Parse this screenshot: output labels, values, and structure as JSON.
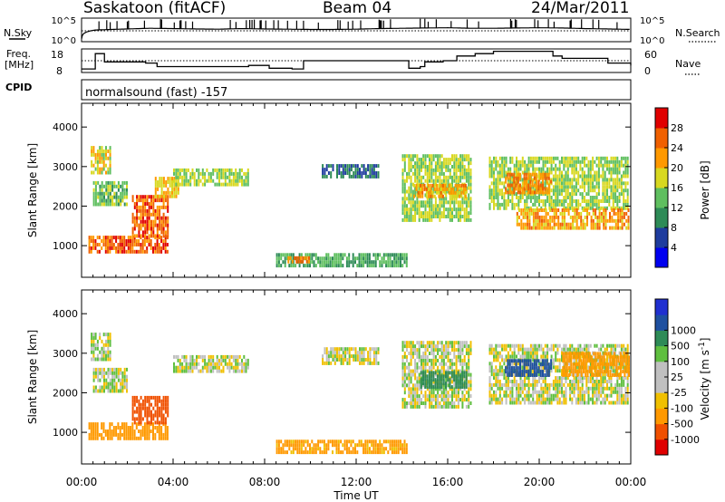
{
  "header": {
    "site": "Saskatoon (fitACF)",
    "beam": "Beam 04",
    "date": "24/Mar/2011"
  },
  "noise_panel": {
    "left_label": "N.Sky",
    "right_label": "N.Search",
    "left_ticks": [
      "10^5",
      "10^0"
    ],
    "right_ticks": [
      "10^5",
      "10^0"
    ]
  },
  "freq_panel": {
    "left_label_1": "Freq.",
    "left_label_2": "[MHz]",
    "right_label": "Nave",
    "left_ticks": [
      "18",
      "8"
    ],
    "right_ticks": [
      "60",
      "0"
    ]
  },
  "cpid": {
    "label": "CPID",
    "value": "normalsound (fast) -157"
  },
  "x_axis": {
    "title": "Time UT",
    "ticks": [
      "00:00",
      "04:00",
      "08:00",
      "12:00",
      "16:00",
      "20:00",
      "00:00"
    ]
  },
  "colors": {
    "power": [
      "#0000f0",
      "#1e3c9e",
      "#2e8b57",
      "#5fbf5f",
      "#d8d820",
      "#ff9900",
      "#f06000",
      "#e00000"
    ],
    "velocity": [
      "#e00000",
      "#f05000",
      "#ff9900",
      "#f0c000",
      "#c0c0c0",
      "#c0c0c0",
      "#5fbf3f",
      "#2e8b57",
      "#1e50a0",
      "#2030d0"
    ]
  },
  "chart_data": [
    {
      "type": "line",
      "title": "Saskatoon (fitACF)",
      "series": [
        {
          "name": "N.Sky",
          "x": [
            0,
            0.6,
            1,
            2,
            3,
            4,
            5,
            6,
            7,
            8,
            9,
            10,
            11,
            12,
            13,
            14,
            15,
            16,
            17,
            18,
            19,
            20,
            21,
            22,
            23,
            24
          ],
          "values": [
            4,
            300,
            350,
            500,
            700,
            600,
            500,
            450,
            600,
            500,
            450,
            400,
            400,
            450,
            600,
            700,
            800,
            900,
            700,
            700,
            800,
            900,
            800,
            600,
            500,
            400
          ]
        }
      ],
      "ylim": [
        1,
        100000
      ],
      "yscale": "log"
    },
    {
      "type": "line",
      "series": [
        {
          "name": "Freq",
          "x": [
            0,
            0.6,
            1.0,
            2.8,
            3.3,
            7.3,
            8.2,
            9.2,
            9.7,
            14.3,
            14.8,
            15.0,
            15.8,
            16.4,
            17.2,
            18.0,
            20.6,
            21.0,
            23.0,
            24.0
          ],
          "values": [
            9.5,
            16,
            12.5,
            12,
            10.5,
            11,
            9.8,
            9.5,
            13,
            9.8,
            10.5,
            12.5,
            13,
            15,
            16,
            17,
            15,
            14,
            12,
            11
          ]
        },
        {
          "name": "Nave",
          "x": [
            0,
            24
          ],
          "values": [
            30,
            30
          ]
        }
      ],
      "ylim": [
        8,
        18
      ],
      "y2lim": [
        0,
        60
      ]
    },
    {
      "type": "heatmap",
      "ylabel": "Slant Range [km]",
      "xlabel": "",
      "xlim": [
        0,
        24
      ],
      "ylim": [
        200,
        4600
      ],
      "yticks": [
        1000,
        2000,
        3000,
        4000
      ],
      "colorbar": {
        "label": "Power [dB]",
        "ticks": [
          4,
          8,
          12,
          16,
          20,
          24,
          28
        ],
        "range": [
          0,
          32
        ]
      },
      "regions": [
        {
          "t0": 0.3,
          "t1": 3.8,
          "r0": 800,
          "r1": 1200,
          "value": 26
        },
        {
          "t0": 2.2,
          "t1": 3.8,
          "r0": 1200,
          "r1": 2200,
          "value": 26
        },
        {
          "t0": 0.5,
          "t1": 2.0,
          "r0": 2000,
          "r1": 2600,
          "value": 14
        },
        {
          "t0": 0.4,
          "t1": 1.3,
          "r0": 2800,
          "r1": 3500,
          "value": 18
        },
        {
          "t0": 3.2,
          "t1": 4.2,
          "r0": 2200,
          "r1": 2700,
          "value": 20
        },
        {
          "t0": 4.0,
          "t1": 7.3,
          "r0": 2500,
          "r1": 2900,
          "value": 16
        },
        {
          "t0": 8.5,
          "t1": 14.2,
          "r0": 450,
          "r1": 800,
          "value": 12
        },
        {
          "t0": 9.0,
          "t1": 10.0,
          "r0": 550,
          "r1": 700,
          "value": 24
        },
        {
          "t0": 10.5,
          "t1": 13.0,
          "r0": 2700,
          "r1": 3000,
          "value": 8
        },
        {
          "t0": 14.0,
          "t1": 17.0,
          "r0": 1600,
          "r1": 3300,
          "value": 16
        },
        {
          "t0": 14.5,
          "t1": 16.8,
          "r0": 2200,
          "r1": 2500,
          "value": 22
        },
        {
          "t0": 17.8,
          "t1": 23.9,
          "r0": 1900,
          "r1": 3200,
          "value": 16
        },
        {
          "t0": 19.0,
          "t1": 23.9,
          "r0": 1400,
          "r1": 1900,
          "value": 22
        },
        {
          "t0": 18.5,
          "t1": 20.5,
          "r0": 2300,
          "r1": 2800,
          "value": 24
        }
      ]
    },
    {
      "type": "heatmap",
      "ylabel": "Slant Range [km]",
      "xlabel": "Time UT",
      "xlim": [
        0,
        24
      ],
      "ylim": [
        200,
        4600
      ],
      "yticks": [
        1000,
        2000,
        3000,
        4000
      ],
      "colorbar": {
        "label": "Velocity [m s^-1]",
        "ticks": [
          -1000,
          -500,
          -100,
          -25,
          25,
          100,
          500,
          1000
        ]
      },
      "regions": [
        {
          "t0": 0.3,
          "t1": 3.8,
          "r0": 800,
          "r1": 1200,
          "value": -300
        },
        {
          "t0": 2.2,
          "t1": 3.8,
          "r0": 1200,
          "r1": 1900,
          "value": -600
        },
        {
          "t0": 0.5,
          "t1": 2.0,
          "r0": 2000,
          "r1": 2600,
          "value": 0
        },
        {
          "t0": 0.4,
          "t1": 1.3,
          "r0": 2800,
          "r1": 3500,
          "value": 0
        },
        {
          "t0": 4.0,
          "t1": 7.3,
          "r0": 2500,
          "r1": 2900,
          "value": 0
        },
        {
          "t0": 8.5,
          "t1": 14.2,
          "r0": 450,
          "r1": 800,
          "value": -150
        },
        {
          "t0": 10.5,
          "t1": 13.0,
          "r0": 2700,
          "r1": 3100,
          "value": 0
        },
        {
          "t0": 14.0,
          "t1": 17.0,
          "r0": 1600,
          "r1": 3300,
          "value": 0
        },
        {
          "t0": 14.8,
          "t1": 16.8,
          "r0": 2100,
          "r1": 2500,
          "value": 400
        },
        {
          "t0": 17.8,
          "t1": 23.9,
          "r0": 1700,
          "r1": 3200,
          "value": 0
        },
        {
          "t0": 18.5,
          "t1": 20.5,
          "r0": 2400,
          "r1": 2800,
          "value": 800
        },
        {
          "t0": 21.0,
          "t1": 23.9,
          "r0": 2400,
          "r1": 3000,
          "value": -200
        }
      ]
    }
  ]
}
